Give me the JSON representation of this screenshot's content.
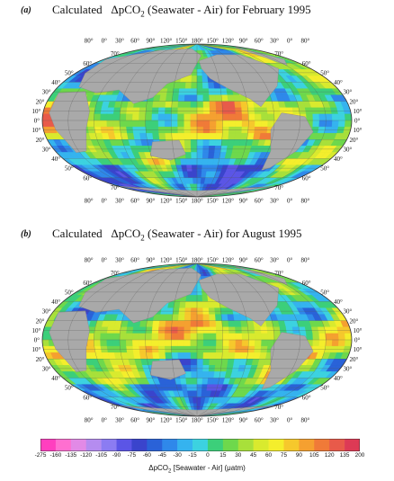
{
  "panels": [
    {
      "tag": "(a)",
      "title_prefix": "Calculated",
      "title_delta": "ΔpCO",
      "title_sub": "2",
      "title_suffix": "(Seawater - Air) for February 1995"
    },
    {
      "tag": "(b)",
      "title_prefix": "Calculated",
      "title_delta": "ΔpCO",
      "title_sub": "2",
      "title_suffix": "(Seawater - Air) for August 1995"
    }
  ],
  "lon_labels_top": [
    "80°",
    "0°",
    "30°",
    "60°",
    "90°",
    "120°",
    "150°",
    "180°",
    "150°",
    "120°",
    "90°",
    "60°",
    "30°",
    "0°",
    "80°"
  ],
  "lon_labels_bottom": [
    "80°",
    "0°",
    "30°",
    "60°",
    "90°",
    "120°",
    "150°",
    "180°",
    "150°",
    "120°",
    "90°",
    "60°",
    "30°",
    "0°",
    "80°"
  ],
  "lat_labels_left": [
    "70°",
    "60°",
    "50°",
    "40°",
    "30°",
    "20°",
    "10°",
    "0°",
    "10°",
    "20°",
    "30°",
    "40°",
    "50°",
    "60°",
    "70°"
  ],
  "lat_labels_right": [
    "70°",
    "60°",
    "50°",
    "40°",
    "30°",
    "20°",
    "10°",
    "0°",
    "10°",
    "20°",
    "30°",
    "40°",
    "50°",
    "60°",
    "70°"
  ],
  "colorbar": {
    "ticks": [
      "-275",
      "-160",
      "-135",
      "-120",
      "-105",
      "-90",
      "-75",
      "-60",
      "-45",
      "-30",
      "-15",
      "0",
      "15",
      "30",
      "45",
      "60",
      "75",
      "90",
      "105",
      "120",
      "135",
      "200"
    ],
    "colors": [
      "#ff3fbf",
      "#ff6fd0",
      "#e28ae6",
      "#b58cf0",
      "#8b7cf2",
      "#5b55e6",
      "#3a44cc",
      "#2a62d8",
      "#2f88ea",
      "#35b3ef",
      "#3cd2e0",
      "#3ccf7a",
      "#6ed84c",
      "#a8e03a",
      "#d9ea2e",
      "#f4ee2c",
      "#f6c82c",
      "#f5a030",
      "#f07a38",
      "#e85a4a",
      "#dd3a55"
    ],
    "label_prefix": "ΔpCO",
    "label_sub": "2",
    "label_suffix": "[Seawater - Air] (μatm)"
  },
  "colors": {
    "land": "#a9a9a9",
    "ocean_frame": "#ffffff",
    "grid": "#555555"
  }
}
